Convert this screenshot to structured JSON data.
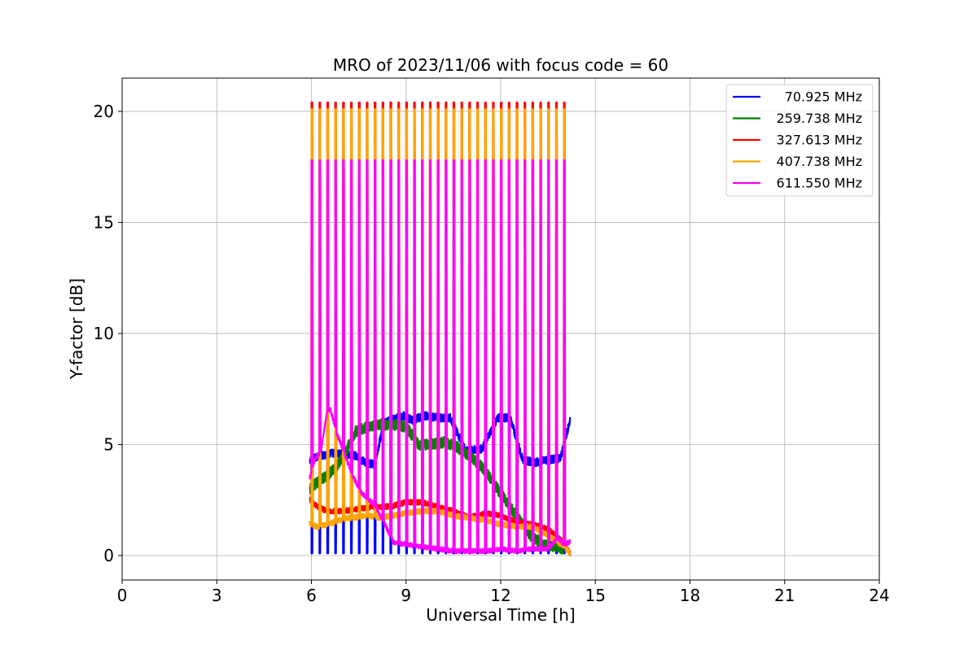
{
  "chart_data": {
    "type": "line",
    "title": "MRO of 2023/11/06 with focus code = 60",
    "xlabel": "Universal Time [h]",
    "ylabel": "Y-factor [dB]",
    "xlim": [
      0,
      24
    ],
    "ylim": [
      -1.1,
      21.5
    ],
    "xticks": [
      0,
      3,
      6,
      9,
      12,
      15,
      18,
      21,
      24
    ],
    "yticks": [
      0,
      5,
      10,
      15,
      20
    ],
    "grid": true,
    "legend_position": "top-right",
    "pulse_times": [
      6.0,
      6.25,
      6.5,
      6.75,
      7.0,
      7.25,
      7.5,
      7.75,
      8.0,
      8.25,
      8.5,
      8.75,
      9.0,
      9.25,
      9.5,
      9.75,
      10.0,
      10.25,
      10.5,
      10.75,
      11.0,
      11.25,
      11.5,
      11.75,
      12.0,
      12.25,
      12.5,
      12.75,
      13.0,
      13.25,
      13.5,
      13.75,
      14.0
    ],
    "series": [
      {
        "name": "70.925 MHz",
        "color": "#0000ff",
        "pulse_peak": 0.1,
        "noise": 0.18,
        "x": [
          5.95,
          6.1,
          6.3,
          6.6,
          7.0,
          7.4,
          7.7,
          8.0,
          8.3,
          8.7,
          8.9,
          9.2,
          9.6,
          10.0,
          10.4,
          10.9,
          11.4,
          11.9,
          12.3,
          12.7,
          13.1,
          13.5,
          13.9,
          14.2
        ],
        "y": [
          4.3,
          4.4,
          4.5,
          4.6,
          4.6,
          4.5,
          4.2,
          4.1,
          6.0,
          6.2,
          6.3,
          6.1,
          6.3,
          6.2,
          6.2,
          4.7,
          4.8,
          6.2,
          6.2,
          4.3,
          4.2,
          4.3,
          4.4,
          6.1
        ]
      },
      {
        "name": "259.738 MHz",
        "color": "#008000",
        "pulse_peak": null,
        "noise": 0.25,
        "x": [
          5.95,
          6.2,
          6.5,
          6.8,
          7.1,
          7.4,
          7.8,
          8.2,
          8.6,
          9.0,
          9.4,
          9.8,
          10.2,
          10.6,
          11.0,
          11.4,
          11.8,
          12.2,
          12.6,
          13.0,
          13.4,
          13.8,
          14.0
        ],
        "y": [
          3.0,
          3.3,
          3.6,
          4.0,
          4.7,
          5.6,
          5.8,
          5.9,
          5.9,
          5.8,
          5.0,
          5.0,
          5.1,
          4.9,
          4.5,
          4.0,
          3.2,
          2.4,
          1.6,
          0.8,
          0.5,
          0.4,
          0.3
        ]
      },
      {
        "name": "327.613 MHz",
        "color": "#ff0000",
        "pulse_peak": 20.4,
        "noise": 0.12,
        "x": [
          5.95,
          6.2,
          6.5,
          7.0,
          7.5,
          8.0,
          8.5,
          9.0,
          9.5,
          10.0,
          10.5,
          11.0,
          11.5,
          12.0,
          12.5,
          13.0,
          13.5,
          14.0,
          14.2
        ],
        "y": [
          2.5,
          2.2,
          2.0,
          2.0,
          2.1,
          2.2,
          2.2,
          2.4,
          2.4,
          2.2,
          2.0,
          1.7,
          1.9,
          1.8,
          1.5,
          1.4,
          1.2,
          0.6,
          0.1
        ]
      },
      {
        "name": "407.738 MHz",
        "color": "#ffa500",
        "pulse_peak": 20.1,
        "noise": 0.12,
        "x": [
          5.95,
          6.2,
          6.5,
          6.9,
          7.3,
          7.8,
          8.2,
          8.6,
          9.0,
          9.5,
          10.0,
          10.5,
          11.0,
          11.5,
          12.0,
          12.5,
          13.0,
          13.5,
          14.0,
          14.2
        ],
        "y": [
          1.4,
          1.3,
          1.4,
          1.6,
          1.7,
          1.8,
          1.7,
          1.8,
          1.9,
          2.0,
          2.0,
          1.8,
          1.7,
          1.6,
          1.4,
          1.3,
          1.3,
          0.9,
          0.4,
          0.1
        ]
      },
      {
        "name": "611.550 MHz",
        "color": "#ff00ff",
        "pulse_peak": 17.8,
        "noise": 0.1,
        "x": [
          5.95,
          6.1,
          6.3,
          6.5,
          6.6,
          6.8,
          7.0,
          7.3,
          7.6,
          8.0,
          8.3,
          8.6,
          9.0,
          9.5,
          10.0,
          10.5,
          11.0,
          11.5,
          12.0,
          12.5,
          13.0,
          13.5,
          13.8,
          14.0,
          14.2
        ],
        "y": [
          3.5,
          4.3,
          4.7,
          6.5,
          6.6,
          5.5,
          4.8,
          3.6,
          2.8,
          2.3,
          1.5,
          0.6,
          0.5,
          0.4,
          0.3,
          0.2,
          0.2,
          0.2,
          0.3,
          0.2,
          0.3,
          0.3,
          0.8,
          0.5,
          0.6
        ]
      }
    ]
  }
}
